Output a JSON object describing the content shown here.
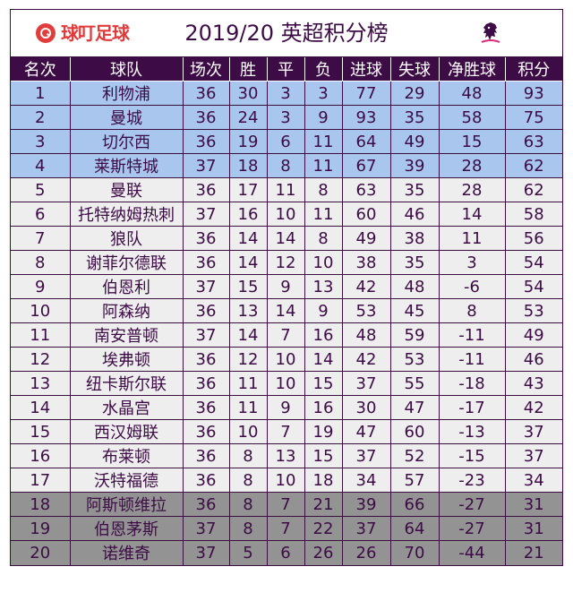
{
  "header": {
    "brand": "球叮足球",
    "title": "2019/20 英超积分榜"
  },
  "columns": [
    "名次",
    "球队",
    "场次",
    "胜",
    "平",
    "负",
    "进球",
    "失球",
    "净胜球",
    "积分"
  ],
  "zone_colors": {
    "top4": "#a9c7ee",
    "mid": "#eeeeee",
    "relegation": "#939393",
    "header": "#3d0b45"
  },
  "rows": [
    {
      "rank": "1",
      "team": "利物浦",
      "played": "36",
      "won": "30",
      "draw": "3",
      "lost": "3",
      "gf": "77",
      "ga": "29",
      "gd": "48",
      "pts": "93",
      "zone": "z-cl"
    },
    {
      "rank": "2",
      "team": "曼城",
      "played": "36",
      "won": "24",
      "draw": "3",
      "lost": "9",
      "gf": "93",
      "ga": "35",
      "gd": "58",
      "pts": "75",
      "zone": "z-cl"
    },
    {
      "rank": "3",
      "team": "切尔西",
      "played": "36",
      "won": "19",
      "draw": "6",
      "lost": "11",
      "gf": "64",
      "ga": "49",
      "gd": "15",
      "pts": "63",
      "zone": "z-cl"
    },
    {
      "rank": "4",
      "team": "莱斯特城",
      "played": "37",
      "won": "18",
      "draw": "8",
      "lost": "11",
      "gf": "67",
      "ga": "39",
      "gd": "28",
      "pts": "62",
      "zone": "z-cl"
    },
    {
      "rank": "5",
      "team": "曼联",
      "played": "36",
      "won": "17",
      "draw": "11",
      "lost": "8",
      "gf": "63",
      "ga": "35",
      "gd": "28",
      "pts": "62",
      "zone": "z-mid"
    },
    {
      "rank": "6",
      "team": "托特纳姆热刺",
      "played": "37",
      "won": "16",
      "draw": "10",
      "lost": "11",
      "gf": "60",
      "ga": "46",
      "gd": "14",
      "pts": "58",
      "zone": "z-mid"
    },
    {
      "rank": "7",
      "team": "狼队",
      "played": "36",
      "won": "14",
      "draw": "14",
      "lost": "8",
      "gf": "49",
      "ga": "38",
      "gd": "11",
      "pts": "56",
      "zone": "z-mid"
    },
    {
      "rank": "8",
      "team": "谢菲尔德联",
      "played": "36",
      "won": "14",
      "draw": "12",
      "lost": "10",
      "gf": "38",
      "ga": "35",
      "gd": "3",
      "pts": "54",
      "zone": "z-mid"
    },
    {
      "rank": "9",
      "team": "伯恩利",
      "played": "37",
      "won": "15",
      "draw": "9",
      "lost": "13",
      "gf": "42",
      "ga": "48",
      "gd": "-6",
      "pts": "54",
      "zone": "z-mid"
    },
    {
      "rank": "10",
      "team": "阿森纳",
      "played": "36",
      "won": "13",
      "draw": "14",
      "lost": "9",
      "gf": "53",
      "ga": "45",
      "gd": "8",
      "pts": "53",
      "zone": "z-mid"
    },
    {
      "rank": "11",
      "team": "南安普顿",
      "played": "37",
      "won": "14",
      "draw": "7",
      "lost": "16",
      "gf": "48",
      "ga": "59",
      "gd": "-11",
      "pts": "49",
      "zone": "z-mid"
    },
    {
      "rank": "12",
      "team": "埃弗顿",
      "played": "36",
      "won": "12",
      "draw": "10",
      "lost": "14",
      "gf": "42",
      "ga": "53",
      "gd": "-11",
      "pts": "46",
      "zone": "z-mid"
    },
    {
      "rank": "13",
      "team": "纽卡斯尔联",
      "played": "36",
      "won": "11",
      "draw": "10",
      "lost": "15",
      "gf": "37",
      "ga": "55",
      "gd": "-18",
      "pts": "43",
      "zone": "z-mid"
    },
    {
      "rank": "14",
      "team": "水晶宫",
      "played": "36",
      "won": "11",
      "draw": "9",
      "lost": "16",
      "gf": "30",
      "ga": "47",
      "gd": "-17",
      "pts": "42",
      "zone": "z-mid"
    },
    {
      "rank": "15",
      "team": "西汉姆联",
      "played": "36",
      "won": "10",
      "draw": "7",
      "lost": "19",
      "gf": "47",
      "ga": "60",
      "gd": "-13",
      "pts": "37",
      "zone": "z-mid"
    },
    {
      "rank": "16",
      "team": "布莱顿",
      "played": "36",
      "won": "8",
      "draw": "13",
      "lost": "15",
      "gf": "37",
      "ga": "52",
      "gd": "-15",
      "pts": "37",
      "zone": "z-mid"
    },
    {
      "rank": "17",
      "team": "沃特福德",
      "played": "36",
      "won": "8",
      "draw": "10",
      "lost": "18",
      "gf": "34",
      "ga": "57",
      "gd": "-23",
      "pts": "34",
      "zone": "z-mid"
    },
    {
      "rank": "18",
      "team": "阿斯顿维拉",
      "played": "36",
      "won": "8",
      "draw": "7",
      "lost": "21",
      "gf": "39",
      "ga": "66",
      "gd": "-27",
      "pts": "31",
      "zone": "z-rel"
    },
    {
      "rank": "19",
      "team": "伯恩茅斯",
      "played": "37",
      "won": "8",
      "draw": "7",
      "lost": "22",
      "gf": "37",
      "ga": "64",
      "gd": "-27",
      "pts": "31",
      "zone": "z-rel"
    },
    {
      "rank": "20",
      "team": "诺维奇",
      "played": "37",
      "won": "5",
      "draw": "6",
      "lost": "26",
      "gf": "26",
      "ga": "70",
      "gd": "-44",
      "pts": "21",
      "zone": "z-rel"
    }
  ]
}
